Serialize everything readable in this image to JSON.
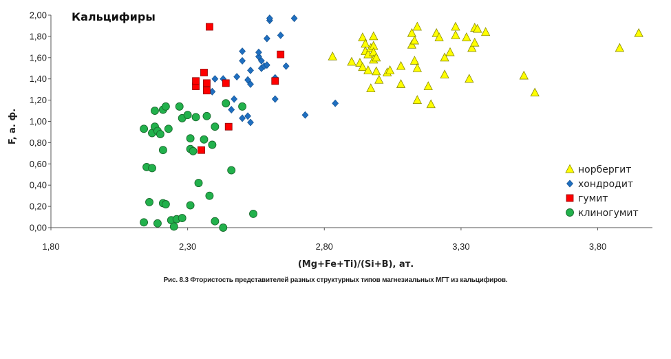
{
  "chart_data": {
    "type": "scatter",
    "title": "Кальцифиры",
    "xlabel": "(Mg+Fe+Ti)/(Si+B), ат.",
    "ylabel": "F, а. ф.",
    "xlim": [
      1.8,
      4.0
    ],
    "ylim": [
      0,
      2.0
    ],
    "x_ticks": [
      "1,80",
      "2,30",
      "2,80",
      "3,30",
      "3,80"
    ],
    "y_ticks": [
      "0,00",
      "0,20",
      "0,40",
      "0,60",
      "0,80",
      "1,00",
      "1,20",
      "1,40",
      "1,60",
      "1,80",
      "2,00"
    ],
    "grid": false,
    "legend_position": "bottom-right",
    "series": [
      {
        "name": "норбергит",
        "marker": "triangle",
        "color": "#ffff00",
        "points": [
          [
            2.83,
            1.61
          ],
          [
            2.9,
            1.56
          ],
          [
            2.94,
            1.79
          ],
          [
            2.93,
            1.55
          ],
          [
            2.94,
            1.51
          ],
          [
            2.95,
            1.73
          ],
          [
            2.95,
            1.66
          ],
          [
            2.96,
            1.63
          ],
          [
            2.97,
            1.69
          ],
          [
            2.96,
            1.48
          ],
          [
            2.97,
            1.31
          ],
          [
            2.98,
            1.8
          ],
          [
            2.98,
            1.71
          ],
          [
            2.98,
            1.65
          ],
          [
            2.98,
            1.58
          ],
          [
            2.99,
            1.6
          ],
          [
            2.99,
            1.47
          ],
          [
            3.0,
            1.39
          ],
          [
            3.03,
            1.46
          ],
          [
            3.04,
            1.48
          ],
          [
            3.08,
            1.35
          ],
          [
            3.08,
            1.52
          ],
          [
            3.12,
            1.83
          ],
          [
            3.12,
            1.72
          ],
          [
            3.13,
            1.57
          ],
          [
            3.13,
            1.76
          ],
          [
            3.14,
            1.89
          ],
          [
            3.14,
            1.5
          ],
          [
            3.14,
            1.2
          ],
          [
            3.18,
            1.33
          ],
          [
            3.19,
            1.16
          ],
          [
            3.21,
            1.83
          ],
          [
            3.22,
            1.79
          ],
          [
            3.24,
            1.6
          ],
          [
            3.24,
            1.44
          ],
          [
            3.26,
            1.65
          ],
          [
            3.28,
            1.89
          ],
          [
            3.28,
            1.81
          ],
          [
            3.32,
            1.79
          ],
          [
            3.33,
            1.4
          ],
          [
            3.34,
            1.69
          ],
          [
            3.35,
            1.74
          ],
          [
            3.35,
            1.88
          ],
          [
            3.36,
            1.87
          ],
          [
            3.39,
            1.84
          ],
          [
            3.53,
            1.43
          ],
          [
            3.57,
            1.27
          ],
          [
            3.88,
            1.69
          ],
          [
            3.95,
            1.83
          ]
        ]
      },
      {
        "name": "хондродит",
        "marker": "diamond",
        "color": "#1f6fc0",
        "points": [
          [
            2.39,
            1.28
          ],
          [
            2.4,
            1.4
          ],
          [
            2.43,
            1.4
          ],
          [
            2.46,
            1.11
          ],
          [
            2.47,
            1.21
          ],
          [
            2.48,
            1.42
          ],
          [
            2.5,
            1.03
          ],
          [
            2.5,
            1.66
          ],
          [
            2.5,
            1.57
          ],
          [
            2.52,
            1.39
          ],
          [
            2.52,
            1.05
          ],
          [
            2.53,
            1.35
          ],
          [
            2.53,
            1.48
          ],
          [
            2.53,
            0.99
          ],
          [
            2.56,
            1.61
          ],
          [
            2.56,
            1.65
          ],
          [
            2.57,
            1.5
          ],
          [
            2.57,
            1.57
          ],
          [
            2.58,
            1.52
          ],
          [
            2.59,
            1.78
          ],
          [
            2.59,
            1.53
          ],
          [
            2.6,
            1.95
          ],
          [
            2.6,
            1.97
          ],
          [
            2.62,
            1.41
          ],
          [
            2.62,
            1.21
          ],
          [
            2.64,
            1.81
          ],
          [
            2.66,
            1.52
          ],
          [
            2.69,
            1.97
          ],
          [
            2.73,
            1.06
          ],
          [
            2.84,
            1.17
          ]
        ]
      },
      {
        "name": "гумит",
        "marker": "square",
        "color": "#ff0000",
        "points": [
          [
            2.33,
            1.33
          ],
          [
            2.33,
            1.38
          ],
          [
            2.35,
            0.73
          ],
          [
            2.36,
            1.46
          ],
          [
            2.37,
            1.36
          ],
          [
            2.37,
            1.29
          ],
          [
            2.38,
            1.89
          ],
          [
            2.44,
            1.36
          ],
          [
            2.45,
            0.95
          ],
          [
            2.62,
            1.38
          ],
          [
            2.64,
            1.63
          ]
        ]
      },
      {
        "name": "клиногумит",
        "marker": "circle",
        "color": "#22b14c",
        "points": [
          [
            2.14,
            0.05
          ],
          [
            2.14,
            0.93
          ],
          [
            2.15,
            0.57
          ],
          [
            2.16,
            0.24
          ],
          [
            2.17,
            0.56
          ],
          [
            2.17,
            0.89
          ],
          [
            2.18,
            0.95
          ],
          [
            2.18,
            1.1
          ],
          [
            2.19,
            0.91
          ],
          [
            2.19,
            0.04
          ],
          [
            2.2,
            0.88
          ],
          [
            2.21,
            0.23
          ],
          [
            2.21,
            0.73
          ],
          [
            2.21,
            1.11
          ],
          [
            2.22,
            0.22
          ],
          [
            2.22,
            1.14
          ],
          [
            2.23,
            0.93
          ],
          [
            2.24,
            0.07
          ],
          [
            2.25,
            0.01
          ],
          [
            2.26,
            0.08
          ],
          [
            2.27,
            1.14
          ],
          [
            2.28,
            0.09
          ],
          [
            2.28,
            1.03
          ],
          [
            2.3,
            1.06
          ],
          [
            2.31,
            0.84
          ],
          [
            2.31,
            0.74
          ],
          [
            2.31,
            0.21
          ],
          [
            2.32,
            0.72
          ],
          [
            2.33,
            1.04
          ],
          [
            2.34,
            0.42
          ],
          [
            2.36,
            0.83
          ],
          [
            2.37,
            1.05
          ],
          [
            2.38,
            0.3
          ],
          [
            2.39,
            0.78
          ],
          [
            2.4,
            0.95
          ],
          [
            2.4,
            0.06
          ],
          [
            2.43,
            0.0
          ],
          [
            2.44,
            1.17
          ],
          [
            2.46,
            0.54
          ],
          [
            2.5,
            1.14
          ],
          [
            2.54,
            0.13
          ]
        ]
      }
    ]
  },
  "caption": "Рис. 8.3 Фтористость представителей разных структурных типов магнезиальных МГТ из кальцифиров."
}
